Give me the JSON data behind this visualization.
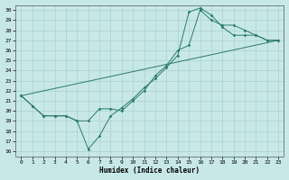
{
  "title": "",
  "xlabel": "Humidex (Indice chaleur)",
  "ylabel": "",
  "bg_color": "#c8e8e8",
  "grid_color": "#aed4d4",
  "line_color": "#2a7a6a",
  "xlim": [
    -0.5,
    23.5
  ],
  "ylim": [
    15.5,
    30.5
  ],
  "xticks": [
    0,
    1,
    2,
    3,
    4,
    5,
    6,
    7,
    8,
    9,
    10,
    11,
    12,
    13,
    14,
    15,
    16,
    17,
    18,
    19,
    20,
    21,
    22,
    23
  ],
  "yticks": [
    16,
    17,
    18,
    19,
    20,
    21,
    22,
    23,
    24,
    25,
    26,
    27,
    28,
    29,
    30
  ],
  "line1_x": [
    0,
    1,
    2,
    3,
    4,
    5,
    6,
    7,
    8,
    9,
    10,
    11,
    12,
    13,
    14,
    15,
    16,
    17,
    18,
    19,
    20,
    21,
    22,
    23
  ],
  "line1_y": [
    21.5,
    20.5,
    19.5,
    19.5,
    19.5,
    19.0,
    16.2,
    17.5,
    19.5,
    20.3,
    21.2,
    22.3,
    23.2,
    24.3,
    25.5,
    29.8,
    30.2,
    29.5,
    28.3,
    27.5,
    27.5,
    27.5,
    27.0,
    27.0
  ],
  "line2_x": [
    0,
    1,
    2,
    3,
    4,
    5,
    6,
    7,
    8,
    9,
    10,
    11,
    12,
    13,
    14,
    15,
    16,
    17,
    18,
    19,
    20,
    21,
    22,
    23
  ],
  "line2_y": [
    21.5,
    20.5,
    19.5,
    19.5,
    19.5,
    19.0,
    19.0,
    20.2,
    20.2,
    20.0,
    21.0,
    22.0,
    23.5,
    24.5,
    26.0,
    26.5,
    30.0,
    29.0,
    28.5,
    28.5,
    28.0,
    27.5,
    27.0,
    27.0
  ],
  "line3_x": [
    0,
    23
  ],
  "line3_y": [
    21.5,
    27.0
  ]
}
